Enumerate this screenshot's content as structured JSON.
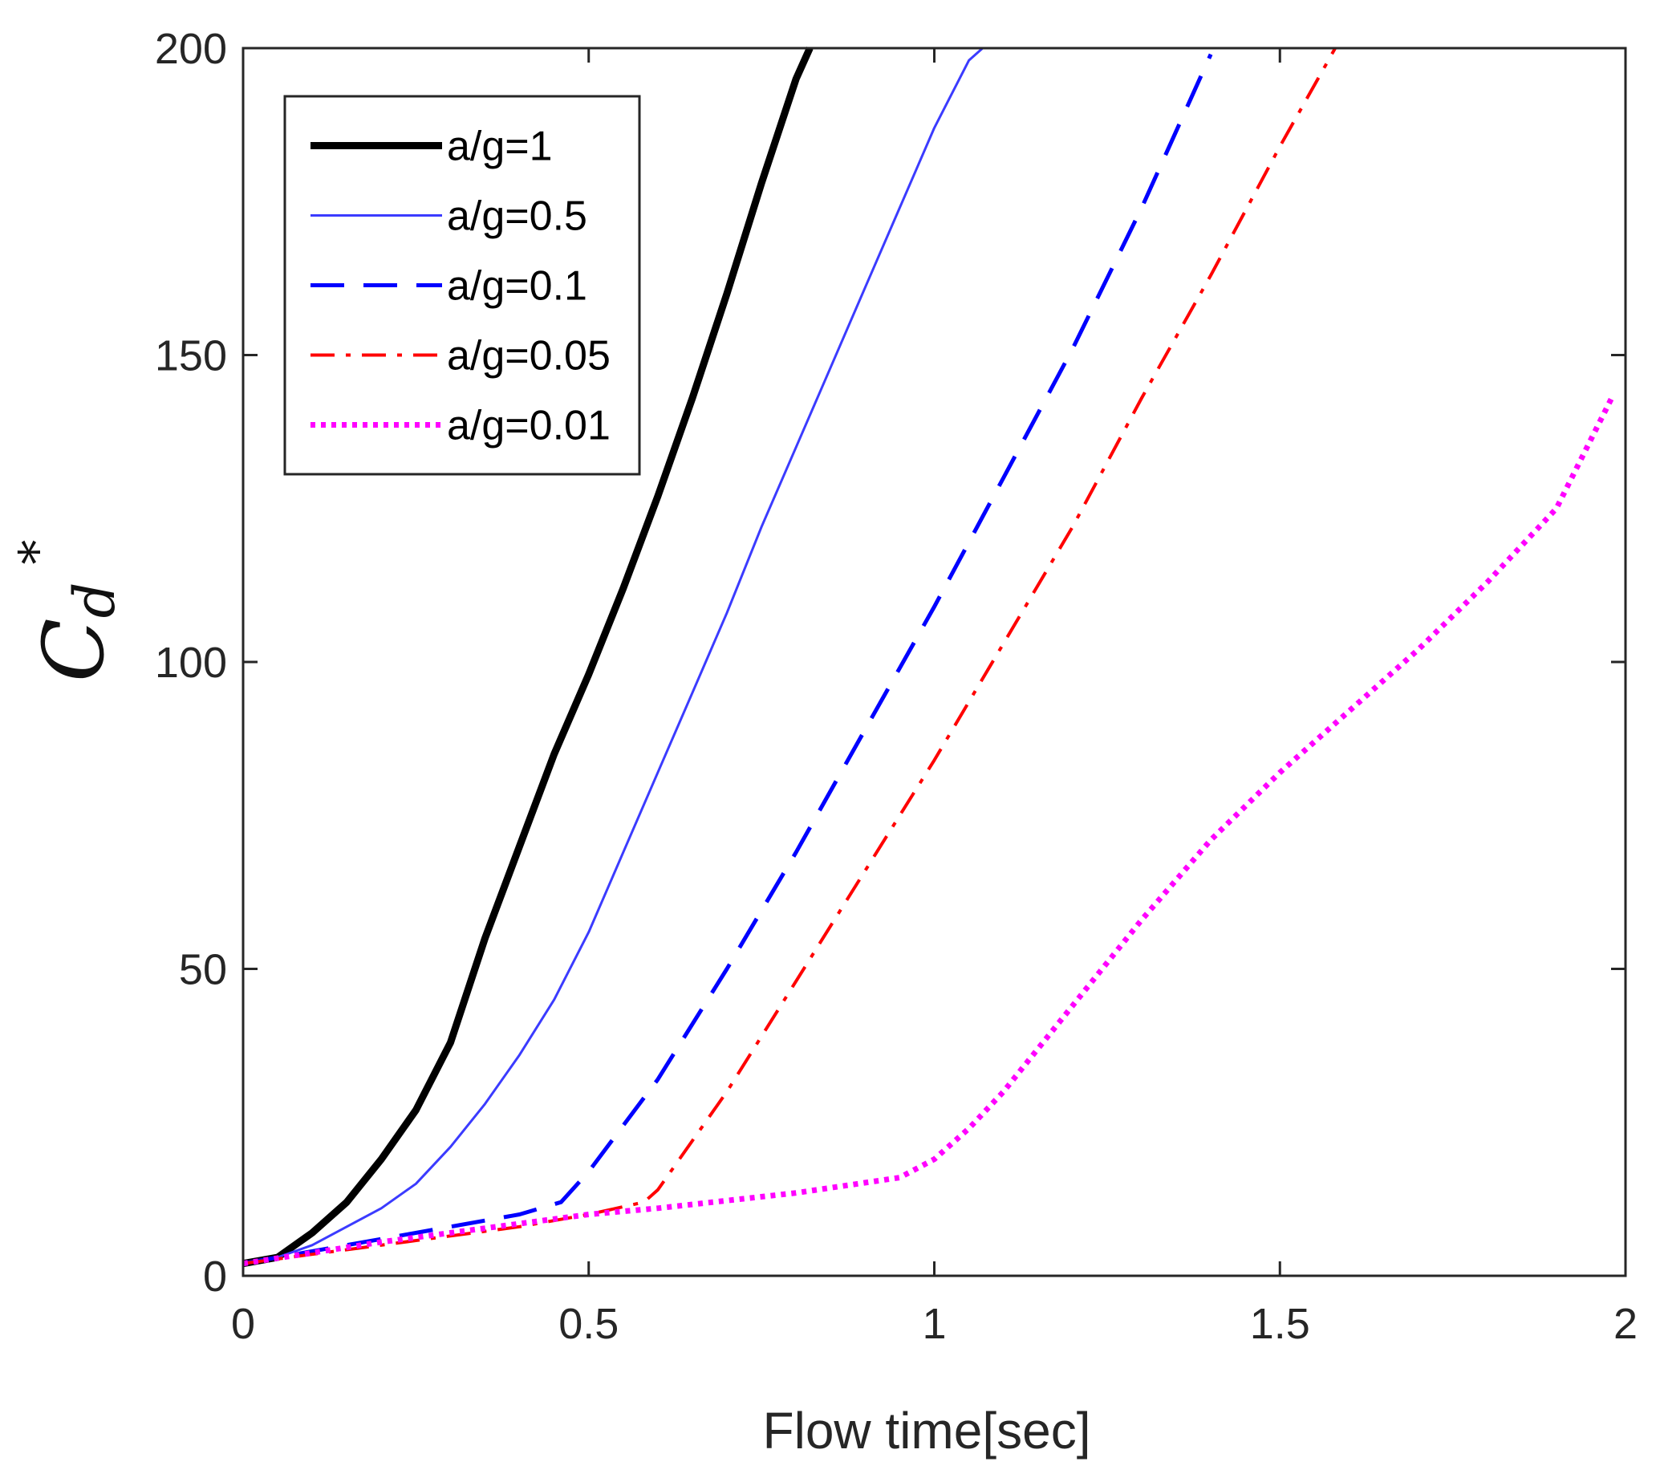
{
  "chart_data": {
    "type": "line",
    "title": "",
    "xlabel": "Flow time[sec]",
    "ylabel": {
      "main": "C",
      "subscript": "d",
      "superscript": "*"
    },
    "xlim": [
      0,
      2
    ],
    "ylim": [
      0,
      200
    ],
    "xticks": [
      0,
      0.5,
      1,
      1.5,
      2
    ],
    "xtick_labels": [
      "0",
      "0.5",
      "1",
      "1.5",
      "2"
    ],
    "yticks": [
      0,
      50,
      100,
      150,
      200
    ],
    "ytick_labels": [
      "0",
      "50",
      "100",
      "150",
      "200"
    ],
    "grid": false,
    "legend_position": "top-left",
    "series": [
      {
        "name": "a/g=1",
        "color": "#000000",
        "style": "solid-thick",
        "x": [
          0,
          0.05,
          0.1,
          0.15,
          0.2,
          0.25,
          0.3,
          0.35,
          0.4,
          0.45,
          0.5,
          0.55,
          0.6,
          0.65,
          0.7,
          0.75,
          0.8,
          0.82
        ],
        "y": [
          2,
          3,
          7,
          12,
          19,
          27,
          38,
          55,
          70,
          85,
          98,
          112,
          127,
          143,
          160,
          178,
          195,
          200
        ]
      },
      {
        "name": "a/g=0.5",
        "color": "#3b3bff",
        "style": "solid-thin",
        "x": [
          0,
          0.05,
          0.1,
          0.15,
          0.2,
          0.25,
          0.3,
          0.35,
          0.4,
          0.45,
          0.5,
          0.55,
          0.6,
          0.65,
          0.7,
          0.75,
          0.8,
          0.85,
          0.9,
          0.95,
          1.0,
          1.05,
          1.07
        ],
        "y": [
          2,
          3,
          5,
          8,
          11,
          15,
          21,
          28,
          36,
          45,
          56,
          69,
          82,
          95,
          108,
          122,
          135,
          148,
          161,
          174,
          187,
          198,
          200
        ]
      },
      {
        "name": "a/g=0.1",
        "color": "#0000ff",
        "style": "dashed",
        "x": [
          0,
          0.1,
          0.2,
          0.3,
          0.4,
          0.46,
          0.5,
          0.6,
          0.7,
          0.8,
          0.9,
          1.0,
          1.1,
          1.2,
          1.3,
          1.4
        ],
        "y": [
          2,
          4,
          6,
          8,
          10,
          12,
          17,
          32,
          50,
          69,
          89,
          109,
          130,
          151,
          174,
          199
        ]
      },
      {
        "name": "a/g=0.05",
        "color": "#ff0000",
        "style": "dash-dot",
        "x": [
          0,
          0.1,
          0.2,
          0.3,
          0.4,
          0.5,
          0.58,
          0.6,
          0.7,
          0.8,
          0.9,
          1.0,
          1.1,
          1.2,
          1.3,
          1.4,
          1.5,
          1.58
        ],
        "y": [
          2,
          3.5,
          5,
          6.5,
          8,
          10,
          12,
          14,
          30,
          48,
          66,
          84,
          103,
          122,
          143,
          163,
          184,
          200
        ]
      },
      {
        "name": "a/g=0.01",
        "color": "#ff00ff",
        "style": "dotted",
        "x": [
          0,
          0.2,
          0.4,
          0.5,
          0.6,
          0.8,
          0.95,
          1.0,
          1.05,
          1.1,
          1.2,
          1.3,
          1.4,
          1.5,
          1.6,
          1.7,
          1.8,
          1.9,
          1.98
        ],
        "y": [
          2,
          5.5,
          8.5,
          10,
          11,
          13.5,
          16,
          19,
          24,
          30,
          44,
          58,
          71,
          82,
          92,
          102,
          113,
          125,
          143
        ]
      }
    ]
  }
}
